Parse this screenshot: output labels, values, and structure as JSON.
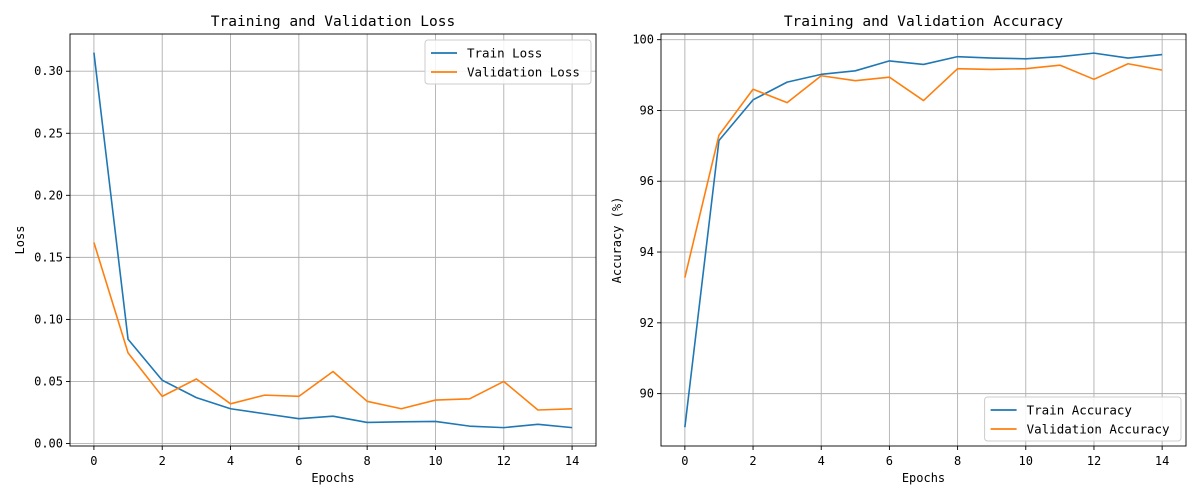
{
  "colors": {
    "train": "#1f77b4",
    "validation": "#ff7f0e",
    "grid": "#b0b0b0",
    "axis": "#000000"
  },
  "chart_data": [
    {
      "type": "line",
      "title": "Training and Validation Loss",
      "xlabel": "Epochs",
      "ylabel": "Loss",
      "xlim": [
        -0.7,
        14.7
      ],
      "ylim": [
        -0.002,
        0.33
      ],
      "xticks": [
        0,
        2,
        4,
        6,
        8,
        10,
        12,
        14
      ],
      "yticks": [
        0.0,
        0.05,
        0.1,
        0.15,
        0.2,
        0.25,
        0.3
      ],
      "ytick_labels": [
        "0.00",
        "0.05",
        "0.10",
        "0.15",
        "0.20",
        "0.25",
        "0.30"
      ],
      "grid": true,
      "legend_position": "top-right",
      "x": [
        0,
        1,
        2,
        3,
        4,
        5,
        6,
        7,
        8,
        9,
        10,
        11,
        12,
        13,
        14
      ],
      "series": [
        {
          "name": "Train Loss",
          "color": "#1f77b4",
          "values": [
            0.315,
            0.084,
            0.051,
            0.037,
            0.028,
            0.024,
            0.02,
            0.022,
            0.017,
            0.0175,
            0.0178,
            0.014,
            0.0128,
            0.0155,
            0.0128
          ]
        },
        {
          "name": "Validation Loss",
          "color": "#ff7f0e",
          "values": [
            0.162,
            0.073,
            0.038,
            0.052,
            0.032,
            0.039,
            0.038,
            0.058,
            0.034,
            0.028,
            0.035,
            0.036,
            0.05,
            0.027,
            0.028
          ]
        }
      ]
    },
    {
      "type": "line",
      "title": "Training and Validation Accuracy",
      "xlabel": "Epochs",
      "ylabel": "Accuracy (%)",
      "xlim": [
        -0.7,
        14.7
      ],
      "ylim": [
        88.52,
        100.16
      ],
      "xticks": [
        0,
        2,
        4,
        6,
        8,
        10,
        12,
        14
      ],
      "yticks": [
        90,
        92,
        94,
        96,
        98,
        100
      ],
      "ytick_labels": [
        "90",
        "92",
        "94",
        "96",
        "98",
        "100"
      ],
      "grid": true,
      "legend_position": "bottom-right",
      "x": [
        0,
        1,
        2,
        3,
        4,
        5,
        6,
        7,
        8,
        9,
        10,
        11,
        12,
        13,
        14
      ],
      "series": [
        {
          "name": "Train Accuracy",
          "color": "#1f77b4",
          "values": [
            89.05,
            97.15,
            98.3,
            98.8,
            99.02,
            99.12,
            99.4,
            99.3,
            99.52,
            99.48,
            99.46,
            99.52,
            99.62,
            99.48,
            99.58
          ]
        },
        {
          "name": "Validation Accuracy",
          "color": "#ff7f0e",
          "values": [
            93.28,
            97.3,
            98.6,
            98.22,
            98.98,
            98.84,
            98.94,
            98.28,
            99.18,
            99.16,
            99.18,
            99.28,
            98.88,
            99.32,
            99.14
          ]
        }
      ]
    }
  ]
}
